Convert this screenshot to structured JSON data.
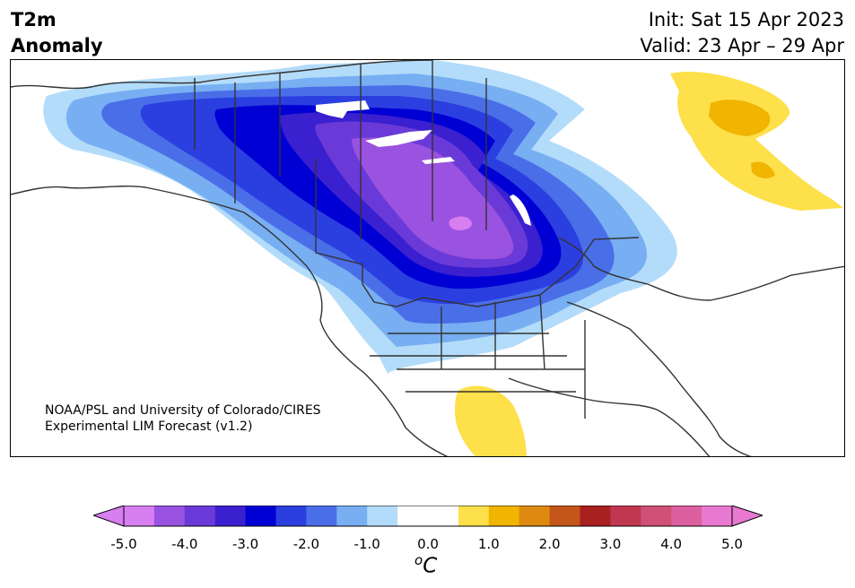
{
  "title": {
    "left_line1": "T2m",
    "left_line2": "Anomaly",
    "init": "Init: Sat 15 Apr 2023",
    "valid": "Valid: 23 Apr – 29 Apr"
  },
  "credit": {
    "line1": "NOAA/PSL and University of Colorado/CIRES",
    "line2": "Experimental LIM Forecast (v1.2)"
  },
  "colorbar": {
    "colors": [
      "#d77ef0",
      "#9a52e0",
      "#6a3ad8",
      "#3b20d0",
      "#0000d4",
      "#2b3fe0",
      "#4a6ee8",
      "#78aef2",
      "#b3dcfa",
      "#ffffff",
      "#ffffff",
      "#fde04a",
      "#f1b400",
      "#de8a10",
      "#c4561a",
      "#a82020",
      "#c03850",
      "#d05078",
      "#dc60a0",
      "#e878d0"
    ],
    "extend_min_color": "#d77ef0",
    "extend_max_color": "#e878d0",
    "tick_labels": [
      "-5.0",
      "-4.0",
      "-3.0",
      "-2.0",
      "-1.0",
      "0.0",
      "1.0",
      "2.0",
      "3.0",
      "4.0",
      "5.0"
    ],
    "unit_base": "o",
    "unit_letter": "C"
  }
}
